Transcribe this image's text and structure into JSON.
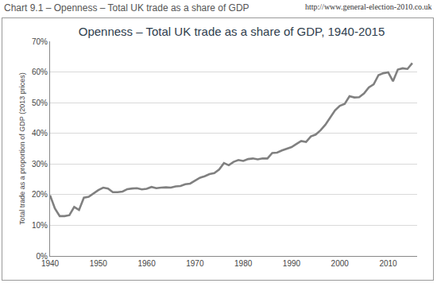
{
  "chart_data": {
    "type": "line",
    "title": "Openness – Total UK trade as a share of GDP, 1940-2015",
    "annotations": [
      "Chart 9.1 – Openness – Total UK trade as a share of GDP",
      "http://www.general-election-2010.co.uk"
    ],
    "y_label": "Total trade as a proportion of GDP (2013 prices)",
    "x": [
      1940,
      1941,
      1942,
      1943,
      1944,
      1945,
      1946,
      1947,
      1948,
      1949,
      1950,
      1951,
      1952,
      1953,
      1954,
      1955,
      1956,
      1957,
      1958,
      1959,
      1960,
      1961,
      1962,
      1963,
      1964,
      1965,
      1966,
      1967,
      1968,
      1969,
      1970,
      1971,
      1972,
      1973,
      1974,
      1975,
      1976,
      1977,
      1978,
      1979,
      1980,
      1981,
      1982,
      1983,
      1984,
      1985,
      1986,
      1987,
      1988,
      1989,
      1990,
      1991,
      1992,
      1993,
      1994,
      1995,
      1996,
      1997,
      1998,
      1999,
      2000,
      2001,
      2002,
      2003,
      2004,
      2005,
      2006,
      2007,
      2008,
      2009,
      2010,
      2011,
      2012,
      2013,
      2014,
      2015
    ],
    "values": [
      19.8,
      15.5,
      13,
      13,
      13.3,
      16,
      15,
      19,
      19.3,
      20.5,
      21.5,
      22.3,
      22,
      20.8,
      20.8,
      21,
      21.8,
      22,
      22.1,
      21.7,
      21.9,
      22.5,
      22.1,
      22.3,
      22.4,
      22.3,
      22.7,
      22.8,
      23.4,
      23.6,
      24.5,
      25.5,
      26,
      26.7,
      27,
      28.2,
      30.3,
      29.6,
      30.7,
      31.3,
      31,
      31.6,
      31.8,
      31.5,
      31.8,
      31.8,
      33.6,
      33.7,
      34.4,
      35,
      35.5,
      36.5,
      37.5,
      37.2,
      39,
      39.6,
      41,
      42.8,
      45,
      47.5,
      49,
      49.6,
      52.1,
      51.7,
      51.8,
      53,
      55,
      56,
      59,
      59.6,
      59.9,
      57,
      60.8,
      61.2,
      61,
      62.9
    ],
    "color": "#808080",
    "line_style": "solid",
    "xlim": [
      1940,
      2016
    ],
    "xticks": [
      1940,
      1950,
      1960,
      1970,
      1980,
      1990,
      2000,
      2010
    ],
    "ylim": [
      0,
      70
    ],
    "yticks": [
      {
        "value": 0,
        "label": "0%"
      },
      {
        "value": 10,
        "label": "10%"
      },
      {
        "value": 20,
        "label": "20%"
      },
      {
        "value": 30,
        "label": "30%"
      },
      {
        "value": 40,
        "label": "40%"
      },
      {
        "value": 50,
        "label": "50%"
      },
      {
        "value": 60,
        "label": "60%"
      },
      {
        "value": 70,
        "label": "70%"
      }
    ],
    "grid": true
  }
}
